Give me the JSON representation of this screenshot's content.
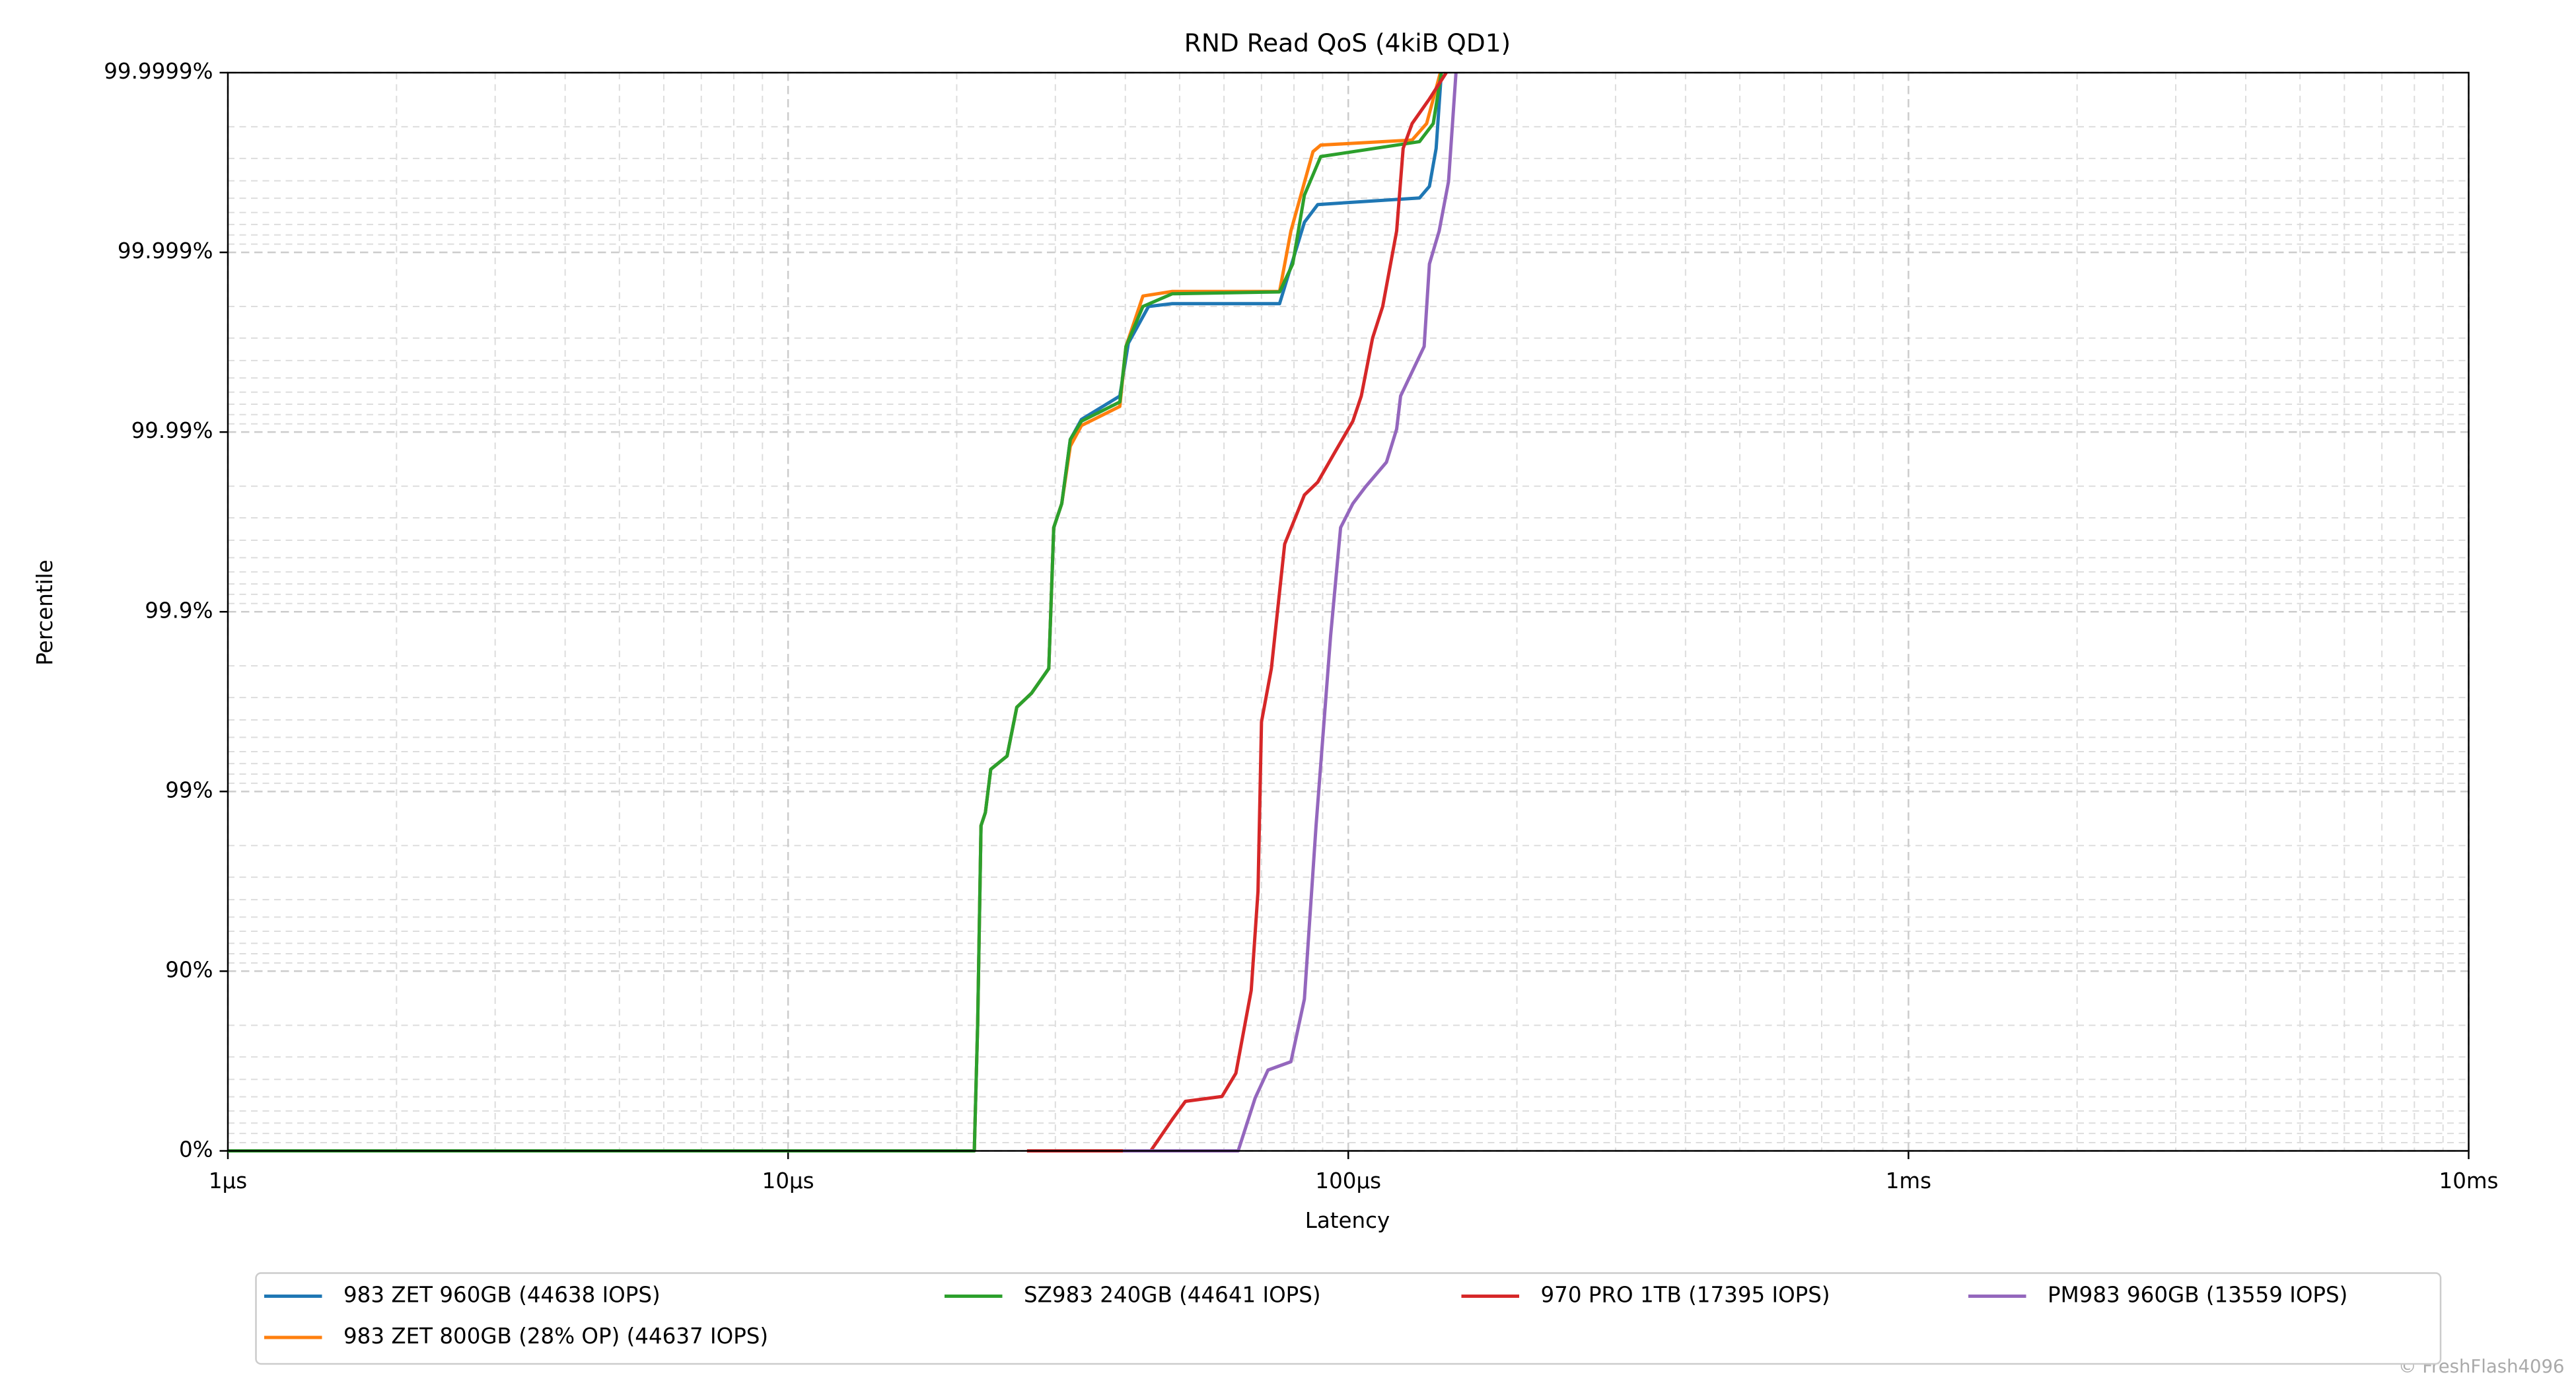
{
  "chart_data": {
    "type": "line",
    "title": "RND Read QoS (4kiB QD1)",
    "x_label": "Latency",
    "y_label": "Percentile",
    "watermark": "© FreshFlash4096",
    "xscale": "log",
    "yscale": "nines",
    "grid": true,
    "minor_grid": true,
    "legend": "bottom",
    "xlim": [
      1,
      10000
    ],
    "xticks": [
      {
        "value": 1,
        "label": "1µs"
      },
      {
        "value": 10,
        "label": "10µs"
      },
      {
        "value": 100,
        "label": "100µs"
      },
      {
        "value": 1000,
        "label": "1ms"
      },
      {
        "value": 10000,
        "label": "10ms"
      }
    ],
    "ylim": [
      0,
      99.9999
    ],
    "yticks": [
      {
        "value": 0,
        "label": "0%"
      },
      {
        "value": 90,
        "label": "90%"
      },
      {
        "value": 99,
        "label": "99%"
      },
      {
        "value": 99.9,
        "label": "99.9%"
      },
      {
        "value": 99.99,
        "label": "99.99%"
      },
      {
        "value": 99.999,
        "label": "99.999%"
      },
      {
        "value": 99.9999,
        "label": "99.9999%"
      }
    ],
    "series": [
      {
        "name": "983 ZET 960GB (44638 IOPS)",
        "color": "#1f77b4",
        "x": [
          1,
          21.5,
          21.8,
          22.1,
          22.5,
          23,
          24.6,
          25.6,
          27.2,
          29.2,
          29.8,
          30.8,
          31.9,
          33.4,
          39.1,
          40.5,
          44,
          48.5,
          75.4,
          83.5,
          88.2,
          134,
          139.6,
          143.5,
          146.6
        ],
        "values": [
          0,
          0,
          80.4,
          98.45,
          98.69,
          99.247,
          99.365,
          99.66,
          99.716,
          99.793,
          99.966,
          99.975,
          99.989,
          99.9915,
          99.9937,
          99.9968,
          99.998,
          99.99807,
          99.99807,
          99.99932,
          99.999458,
          99.999502,
          99.999571,
          99.999736,
          99.9999
        ]
      },
      {
        "name": "983 ZET 800GB (28% OP) (44637 IOPS)",
        "color": "#ff7f0e",
        "x": [
          1,
          21.5,
          21.8,
          22.1,
          22.5,
          23,
          24.6,
          25.6,
          27.2,
          29.2,
          29.8,
          30.8,
          31.9,
          33.4,
          39.1,
          40.1,
          43,
          48.5,
          75.4,
          79,
          86.5,
          89.3,
          130,
          138,
          146
        ],
        "values": [
          0,
          0,
          80.4,
          98.45,
          98.69,
          99.247,
          99.365,
          99.66,
          99.716,
          99.793,
          99.966,
          99.975,
          99.988,
          99.9908,
          99.9928,
          99.99666,
          99.99825,
          99.99835,
          99.99835,
          99.99924,
          99.999725,
          99.999747,
          99.999763,
          99.999808,
          99.9999
        ]
      },
      {
        "name": "SZ983 240GB (44641 IOPS)",
        "color": "#2ca02c",
        "x": [
          1,
          21.5,
          21.8,
          22.1,
          22.5,
          23,
          24.6,
          25.6,
          27.2,
          29.2,
          29.8,
          30.8,
          31.9,
          33.4,
          39.1,
          40.1,
          43,
          48.5,
          75.4,
          79.6,
          83.5,
          89.3,
          134,
          141.8,
          146.6
        ],
        "values": [
          0,
          0,
          80.4,
          98.45,
          98.69,
          99.247,
          99.365,
          99.66,
          99.716,
          99.793,
          99.966,
          99.975,
          99.989,
          99.9913,
          99.9932,
          99.99666,
          99.998,
          99.9983,
          99.99834,
          99.99884,
          99.99952,
          99.999707,
          99.999758,
          99.999808,
          99.9999
        ]
      },
      {
        "name": "970 PRO 1TB (17395 IOPS)",
        "color": "#d62728",
        "x": [
          26.7,
          44.4,
          48.5,
          51.2,
          59.5,
          63,
          67.1,
          69,
          70,
          72.9,
          77,
          83.5,
          88.2,
          94.3,
          101.9,
          105.5,
          110.5,
          115.2,
          122,
          125.3,
          130,
          139.6,
          149.6
        ],
        "values": [
          0,
          0,
          33.1,
          47,
          50.2,
          63,
          87.2,
          96.4,
          99.59,
          99.793,
          99.958,
          99.9776,
          99.981,
          99.9868,
          99.9913,
          99.9937,
          99.997,
          99.998,
          99.99924,
          99.999736,
          99.999808,
          99.99986,
          99.9999
        ]
      },
      {
        "name": "PM983 960GB (13559 IOPS)",
        "color": "#9467bd",
        "x": [
          39.6,
          63.6,
          68.2,
          71.9,
          79,
          83.5,
          87.6,
          93,
          96.9,
          101.9,
          107.3,
          117,
          122,
          124,
          136.6,
          139.6,
          145.3,
          151,
          155.7
        ],
        "values": [
          0,
          0,
          49.2,
          64.5,
          68.1,
          85.7,
          98.45,
          99.864,
          99.966,
          99.975,
          99.9798,
          99.9853,
          99.99038,
          99.9937,
          99.99666,
          99.99884,
          99.99924,
          99.999597,
          99.9999
        ]
      }
    ]
  }
}
